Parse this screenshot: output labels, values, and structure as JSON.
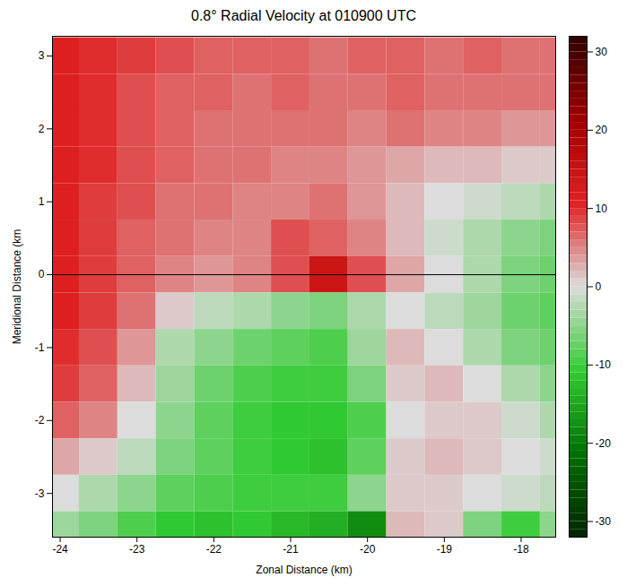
{
  "chart_data": {
    "type": "heatmap",
    "title": "0.8° Radial Velocity at 010900 UTC",
    "x_label": "Zonal Distance (km)",
    "y_label": "Meridional Distance (km",
    "xlim": [
      -24.1,
      -17.55
    ],
    "xticks": [
      -24,
      -23,
      -22,
      -21,
      -20,
      -19,
      -18
    ],
    "ylim": [
      -3.6,
      3.27
    ],
    "yticks": [
      -3,
      -2,
      -1,
      0,
      1,
      2,
      3
    ],
    "hline": 0,
    "x": [
      -24.0,
      -23.5,
      -23.0,
      -22.5,
      -22.0,
      -21.5,
      -21.0,
      -20.5,
      -20.0,
      -19.5,
      -19.0,
      -18.5,
      -18.0,
      -17.5
    ],
    "y": [
      3.0,
      2.5,
      2.0,
      1.5,
      1.0,
      0.5,
      0.0,
      -0.5,
      -1.0,
      -1.5,
      -2.0,
      -2.5,
      -3.0,
      -3.5
    ],
    "cells": [
      [
        11,
        10,
        9,
        8,
        7,
        7,
        7,
        6,
        7,
        7,
        6,
        7,
        6,
        6
      ],
      [
        11,
        10,
        8,
        7,
        7,
        6,
        7,
        6,
        6,
        7,
        6,
        6,
        6,
        6
      ],
      [
        11,
        10,
        8,
        7,
        6,
        6,
        6,
        6,
        5,
        6,
        5,
        5,
        4,
        4
      ],
      [
        11,
        10,
        8,
        7,
        6,
        6,
        5,
        5,
        4,
        3,
        2,
        2,
        1,
        1
      ],
      [
        11,
        9,
        8,
        6,
        6,
        5,
        5,
        6,
        4,
        2,
        0,
        -1,
        -2,
        -3
      ],
      [
        11,
        9,
        7,
        6,
        5,
        5,
        8,
        7,
        5,
        2,
        -1,
        -3,
        -5,
        -6
      ],
      [
        11,
        9,
        7,
        5,
        4,
        5,
        8,
        14,
        8,
        3,
        0,
        -3,
        -6,
        -7
      ],
      [
        11,
        9,
        6,
        1,
        -2,
        -3,
        -5,
        -6,
        -3,
        0,
        -2,
        -4,
        -7,
        -8
      ],
      [
        10,
        8,
        4,
        -3,
        -5,
        -7,
        -8,
        -9,
        -4,
        2,
        0,
        -3,
        -6,
        -7
      ],
      [
        9,
        7,
        2,
        -4,
        -7,
        -9,
        -10,
        -10,
        -6,
        1,
        2,
        0,
        -3,
        -5
      ],
      [
        7,
        5,
        0,
        -5,
        -8,
        -10,
        -11,
        -11,
        -9,
        0,
        1,
        1,
        -1,
        -3
      ],
      [
        3,
        1,
        -2,
        -6,
        -8,
        -10,
        -11,
        -12,
        -8,
        1,
        2,
        1,
        0,
        -1
      ],
      [
        0,
        -3,
        -5,
        -8,
        -9,
        -10,
        -10,
        -10,
        -5,
        1,
        1,
        0,
        -1,
        -2
      ],
      [
        -4,
        -6,
        -9,
        -11,
        -12,
        -11,
        -13,
        -14,
        -18,
        2,
        1,
        -6,
        -10,
        -5
      ]
    ],
    "colorbar_range": [
      -32,
      32
    ],
    "colorbar_ticks": [
      -30,
      -20,
      -10,
      0,
      10,
      20,
      30
    ]
  }
}
